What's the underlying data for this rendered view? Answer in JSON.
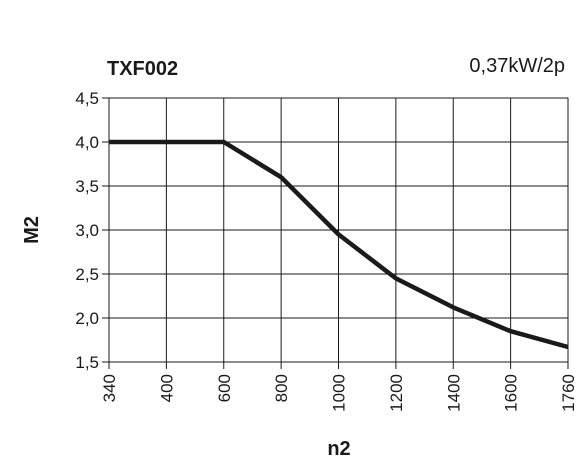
{
  "chart_data": {
    "type": "line",
    "title": "TXF002",
    "subtitle": "0,37kW/2p",
    "xlabel": "n2",
    "ylabel": "M2",
    "x_ticks": [
      "340",
      "400",
      "600",
      "800",
      "1000",
      "1200",
      "1400",
      "1600",
      "1760"
    ],
    "y_ticks": [
      "4,5",
      "4,0",
      "3,5",
      "3,0",
      "2,5",
      "2,0",
      "1,5"
    ],
    "ylim": [
      1.5,
      4.5
    ],
    "grid": true,
    "legend": "none",
    "line_color": "#1a1a1a",
    "series": [
      {
        "x_category_index": [
          0,
          1,
          2,
          3,
          4,
          5,
          6,
          7,
          8
        ],
        "values": [
          4.0,
          4.0,
          4.0,
          3.6,
          2.95,
          2.45,
          2.12,
          1.85,
          1.67
        ]
      }
    ]
  }
}
